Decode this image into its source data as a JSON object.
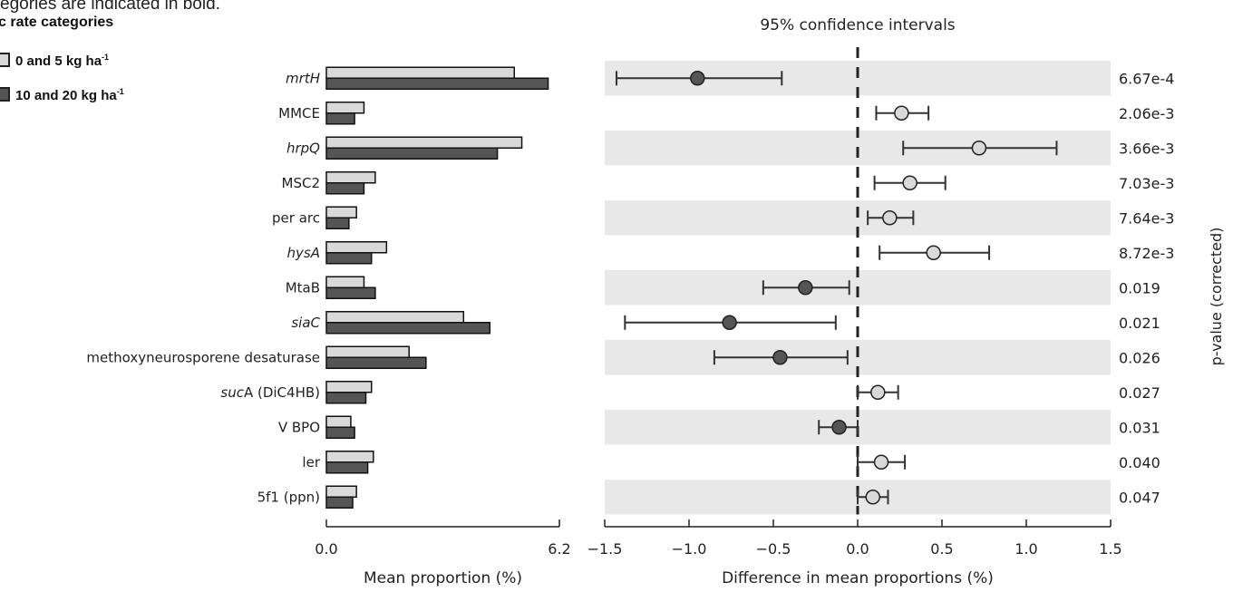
{
  "caption": "egories are indicated in bold.",
  "legend": {
    "title": "c rate categories",
    "items": [
      {
        "label": "0 and 5 kg ha",
        "sup": "-1",
        "color": "#d9d9d9"
      },
      {
        "label": "10 and 20 kg ha",
        "sup": "-1",
        "color": "#555555"
      }
    ]
  },
  "chart_data": [
    {
      "type": "bar",
      "orientation": "horizontal",
      "xlabel": "Mean proportion (%)",
      "xlim": [
        0.0,
        6.2
      ],
      "xticks": [
        "0.0",
        "6.2"
      ],
      "categories": [
        {
          "text": "mrtH",
          "italic": true
        },
        {
          "text": "MMCE"
        },
        {
          "text": "hrpQ",
          "italic": true
        },
        {
          "text": "MSC2"
        },
        {
          "text": "per arc"
        },
        {
          "text": "hysA",
          "italic": true
        },
        {
          "text": "MtaB"
        },
        {
          "text": "siaC",
          "italic": true
        },
        {
          "text": "methoxyneurosporene desaturase"
        },
        {
          "text": "sucA (DiC4HB)",
          "italicPrefix": "suc",
          "rest": "A (DiC4HB)"
        },
        {
          "text": "V BPO"
        },
        {
          "text": "ler"
        },
        {
          "text": "5f1 (ppn)"
        }
      ],
      "series": [
        {
          "name": "0 and 5 kg ha-1",
          "color": "#d9d9d9",
          "values": [
            5.0,
            1.0,
            5.2,
            1.3,
            0.8,
            1.6,
            1.0,
            3.65,
            2.2,
            1.2,
            0.65,
            1.25,
            0.8
          ]
        },
        {
          "name": "10 and 20 kg ha-1",
          "color": "#555555",
          "values": [
            5.9,
            0.75,
            4.55,
            1.0,
            0.6,
            1.2,
            1.3,
            4.35,
            2.65,
            1.05,
            0.75,
            1.1,
            0.7
          ]
        }
      ]
    },
    {
      "type": "scatter",
      "subtype": "confidence-interval",
      "title": "95% confidence intervals",
      "xlabel": "Difference in mean proportions (%)",
      "xlim": [
        -1.5,
        1.5
      ],
      "xticks": [
        "−1.5",
        "−1.0",
        "−0.5",
        "0.0",
        "0.5",
        "1.0",
        "1.5"
      ],
      "tick_values": [
        -1.5,
        -1.0,
        -0.5,
        0.0,
        0.5,
        1.0,
        1.5
      ],
      "ylabel_right": "p-value (corrected)",
      "rows": [
        {
          "mean": -0.95,
          "lo": -1.43,
          "hi": -0.45,
          "p": "6.67e-4"
        },
        {
          "mean": 0.26,
          "lo": 0.11,
          "hi": 0.42,
          "p": "2.06e-3"
        },
        {
          "mean": 0.72,
          "lo": 0.27,
          "hi": 1.18,
          "p": "3.66e-3"
        },
        {
          "mean": 0.31,
          "lo": 0.1,
          "hi": 0.52,
          "p": "7.03e-3"
        },
        {
          "mean": 0.19,
          "lo": 0.06,
          "hi": 0.33,
          "p": "7.64e-3"
        },
        {
          "mean": 0.45,
          "lo": 0.13,
          "hi": 0.78,
          "p": "8.72e-3"
        },
        {
          "mean": -0.31,
          "lo": -0.56,
          "hi": -0.05,
          "p": "0.019"
        },
        {
          "mean": -0.76,
          "lo": -1.38,
          "hi": -0.13,
          "p": "0.021"
        },
        {
          "mean": -0.46,
          "lo": -0.85,
          "hi": -0.06,
          "p": "0.026"
        },
        {
          "mean": 0.12,
          "lo": 0.0,
          "hi": 0.24,
          "p": "0.027"
        },
        {
          "mean": -0.11,
          "lo": -0.23,
          "hi": 0.0,
          "p": "0.031"
        },
        {
          "mean": 0.14,
          "lo": 0.0,
          "hi": 0.28,
          "p": "0.040"
        },
        {
          "mean": 0.09,
          "lo": 0.0,
          "hi": 0.18,
          "p": "0.047"
        }
      ],
      "positive_color": "#d9d9d9",
      "negative_color": "#555555"
    }
  ]
}
